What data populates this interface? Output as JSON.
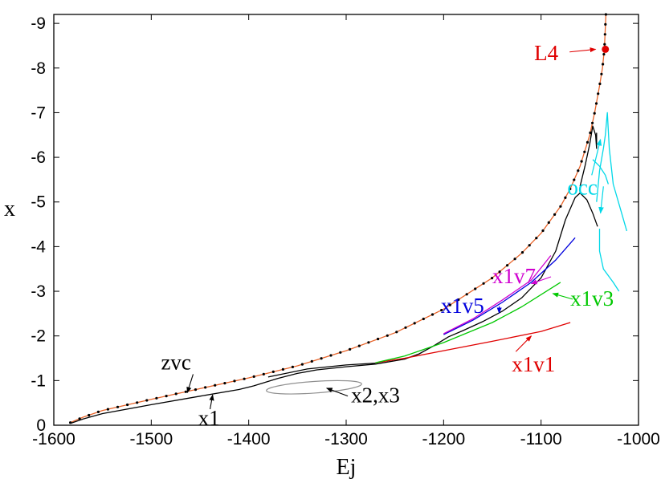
{
  "chart_data": {
    "type": "line",
    "xlabel": "Ej",
    "ylabel": "x",
    "xlim": [
      -1600,
      -1000
    ],
    "ylim": [
      0,
      -9.2
    ],
    "x_ticks": [
      -1600,
      -1500,
      -1400,
      -1300,
      -1200,
      -1100,
      -1000
    ],
    "y_ticks": [
      0,
      -1,
      -2,
      -3,
      -4,
      -5,
      -6,
      -7,
      -8,
      -9
    ],
    "x_tick_labels": [
      "-1600",
      "-1500",
      "-1400",
      "-1300",
      "-1200",
      "-1100",
      "-1000"
    ],
    "y_tick_labels": [
      "0",
      "-1",
      "-2",
      "-3",
      "-4",
      "-5",
      "-6",
      "-7",
      "-8",
      "-9"
    ],
    "colors": {
      "zvc_line": "#e8642a",
      "zvc_dots": "#000000",
      "x1": "#000000",
      "x2x3": "#909090",
      "x1v1": "#e00000",
      "x1v3": "#00c800",
      "x1v5": "#0000dd",
      "x1v7": "#d000d0",
      "occ": "#00d8e8",
      "L4": "#e00000"
    },
    "series": [
      {
        "name": "zvc",
        "points": [
          [
            -1583,
            -0.06
          ],
          [
            -1570,
            -0.18
          ],
          [
            -1550,
            -0.33
          ],
          [
            -1500,
            -0.58
          ],
          [
            -1450,
            -0.82
          ],
          [
            -1400,
            -1.06
          ],
          [
            -1350,
            -1.33
          ],
          [
            -1300,
            -1.67
          ],
          [
            -1250,
            -2.07
          ],
          [
            -1200,
            -2.6
          ],
          [
            -1150,
            -3.3
          ],
          [
            -1120,
            -3.85
          ],
          [
            -1100,
            -4.3
          ],
          [
            -1080,
            -4.9
          ],
          [
            -1070,
            -5.3
          ],
          [
            -1060,
            -5.8
          ],
          [
            -1050,
            -6.5
          ],
          [
            -1045,
            -7.0
          ],
          [
            -1040,
            -7.6
          ],
          [
            -1037,
            -8.0
          ],
          [
            -1035,
            -8.42
          ],
          [
            -1033.5,
            -9.2
          ]
        ]
      },
      {
        "name": "x1",
        "points": [
          [
            -1583,
            -0.04
          ],
          [
            -1570,
            -0.14
          ],
          [
            -1550,
            -0.26
          ],
          [
            -1500,
            -0.46
          ],
          [
            -1450,
            -0.65
          ],
          [
            -1410,
            -0.8
          ],
          [
            -1395,
            -0.88
          ],
          [
            -1370,
            -1.05
          ],
          [
            -1350,
            -1.16
          ],
          [
            -1330,
            -1.24
          ],
          [
            -1300,
            -1.31
          ],
          [
            -1270,
            -1.37
          ],
          [
            -1240,
            -1.48
          ],
          [
            -1225,
            -1.6
          ],
          [
            -1210,
            -1.78
          ],
          [
            -1195,
            -1.98
          ],
          [
            -1180,
            -2.12
          ],
          [
            -1160,
            -2.32
          ],
          [
            -1140,
            -2.55
          ],
          [
            -1120,
            -2.85
          ],
          [
            -1100,
            -3.3
          ],
          [
            -1085,
            -3.9
          ],
          [
            -1075,
            -4.6
          ],
          [
            -1065,
            -5.1
          ],
          [
            -1060,
            -5.2
          ],
          [
            -1053,
            -5.05
          ],
          [
            -1047,
            -4.75
          ],
          [
            -1042,
            -4.45
          ]
        ]
      },
      {
        "name": "x1-upper",
        "points": [
          [
            -1060,
            -5.35
          ],
          [
            -1055,
            -5.8
          ],
          [
            -1050,
            -6.3
          ],
          [
            -1047,
            -6.7
          ],
          [
            -1044,
            -6.5
          ],
          [
            -1043,
            -6.2
          ],
          [
            -1043,
            -6.55
          ]
        ]
      },
      {
        "name": "x1-low",
        "points": [
          [
            -1380,
            -1.08
          ],
          [
            -1340,
            -1.26
          ],
          [
            -1300,
            -1.35
          ],
          [
            -1270,
            -1.39
          ]
        ]
      },
      {
        "name": "x1v1",
        "points": [
          [
            -1270,
            -1.4
          ],
          [
            -1240,
            -1.5
          ],
          [
            -1200,
            -1.67
          ],
          [
            -1150,
            -1.88
          ],
          [
            -1100,
            -2.1
          ],
          [
            -1070,
            -2.3
          ]
        ]
      },
      {
        "name": "x1v3",
        "points": [
          [
            -1270,
            -1.4
          ],
          [
            -1240,
            -1.55
          ],
          [
            -1200,
            -1.85
          ],
          [
            -1150,
            -2.3
          ],
          [
            -1120,
            -2.65
          ],
          [
            -1080,
            -3.2
          ]
        ]
      },
      {
        "name": "x1v5",
        "points": [
          [
            -1200,
            -2.03
          ],
          [
            -1170,
            -2.35
          ],
          [
            -1140,
            -2.75
          ],
          [
            -1110,
            -3.2
          ],
          [
            -1085,
            -3.7
          ],
          [
            -1065,
            -4.2
          ]
        ]
      },
      {
        "name": "x1v7",
        "points": [
          [
            -1200,
            -2.05
          ],
          [
            -1170,
            -2.38
          ],
          [
            -1140,
            -2.8
          ],
          [
            -1110,
            -3.25
          ],
          [
            -1090,
            -3.8
          ]
        ]
      },
      {
        "name": "occ-branch-1",
        "points": [
          [
            -1040,
            -4.4
          ],
          [
            -1040,
            -3.9
          ],
          [
            -1036,
            -3.5
          ],
          [
            -1026,
            -3.2
          ],
          [
            -1020,
            -3.0
          ]
        ]
      },
      {
        "name": "occ-branch-2",
        "points": [
          [
            -1043,
            -5.0
          ],
          [
            -1040,
            -5.7
          ],
          [
            -1036,
            -6.2
          ],
          [
            -1034,
            -6.5
          ],
          [
            -1032,
            -7.0
          ],
          [
            -1030,
            -6.2
          ],
          [
            -1026,
            -5.4
          ],
          [
            -1018,
            -4.8
          ],
          [
            -1012,
            -4.35
          ]
        ]
      },
      {
        "name": "occ-branch-3",
        "points": [
          [
            -1047,
            -5.95
          ],
          [
            -1040,
            -5.8
          ],
          [
            -1034,
            -5.6
          ],
          [
            -1031,
            -5.4
          ]
        ]
      }
    ],
    "ellipse_x2x3": {
      "center": [
        -1333,
        -0.85
      ],
      "rx": 49,
      "ry": 0.13
    },
    "markers": [
      {
        "label": "L4",
        "point": [
          -1034,
          -8.42
        ]
      }
    ],
    "annotations": [
      {
        "text": "zvc",
        "pos": [
          -1490,
          -1.25
        ],
        "target": [
          -1463,
          -0.73
        ],
        "color_key": "x1"
      },
      {
        "text": "x1",
        "pos": [
          -1452,
          0.0
        ],
        "target": [
          -1437,
          -0.68
        ],
        "color_key": "x1"
      },
      {
        "text": "x2,x3",
        "pos": [
          -1295,
          -0.51
        ],
        "target": [
          -1320,
          -0.83
        ],
        "color_key": "x1"
      },
      {
        "text": "x1v1",
        "pos": [
          -1130,
          -1.2
        ],
        "target": [
          -1110,
          -2.0
        ],
        "color_key": "x1v1"
      },
      {
        "text": "x1v3",
        "pos": [
          -1070,
          -2.68
        ],
        "target": [
          -1088,
          -2.95
        ],
        "color_key": "x1v3"
      },
      {
        "text": "x1v5",
        "pos": [
          -1203,
          -2.52
        ],
        "target": [
          -1143,
          -2.51
        ],
        "color_key": "x1v5"
      },
      {
        "text": "x1v7",
        "pos": [
          -1150,
          -3.18
        ],
        "target": [
          -1110,
          -3.17
        ],
        "color_key": "x1v7"
      },
      {
        "text": "occ",
        "pos": [
          -1073,
          -5.17
        ],
        "target": null,
        "color_key": "occ"
      },
      {
        "text": "L4",
        "pos": [
          -1107,
          -8.18
        ],
        "target": [
          -1044,
          -8.42
        ],
        "color_key": "L4"
      }
    ]
  }
}
